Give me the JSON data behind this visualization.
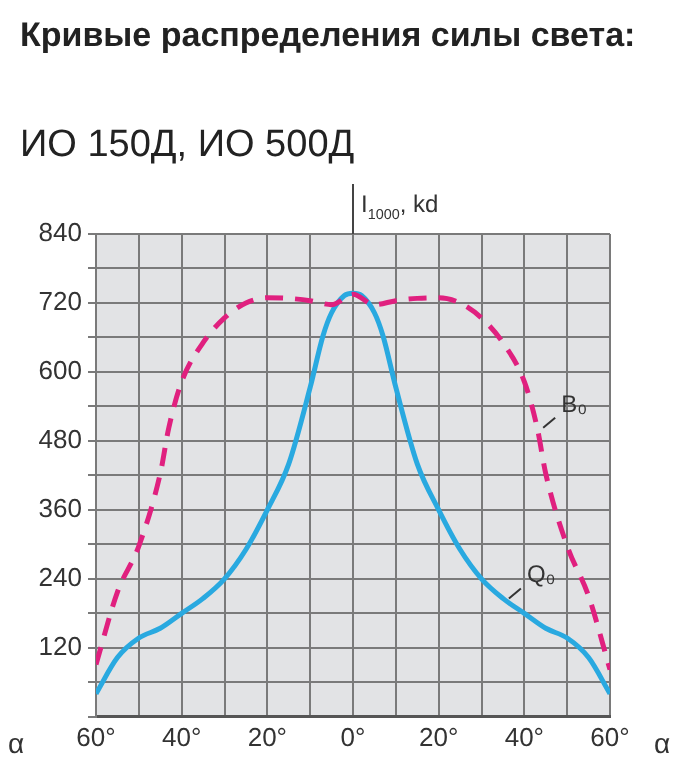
{
  "chart_data": {
    "type": "line",
    "title": "Кривые распределения силы света:",
    "subtitle": "ИО 150Д, ИО 500Д",
    "xlabel": "α",
    "ylabel": "I$_{1000}$, kd",
    "x": [
      -60,
      -55,
      -50,
      -45,
      -43,
      -40,
      -35,
      -30,
      -25,
      -20,
      -15,
      -10,
      -5,
      0,
      5,
      10,
      15,
      20,
      25,
      30,
      35,
      40,
      43,
      45,
      50,
      55,
      60
    ],
    "series": [
      {
        "name": "B₀",
        "color": "#e0207f",
        "line_style": "dashed",
        "values": [
          91,
          217,
          297,
          423,
          503,
          583,
          651,
          694,
          720,
          729,
          728,
          724,
          717,
          735,
          717,
          724,
          728,
          729,
          720,
          694,
          651,
          583,
          503,
          423,
          297,
          210,
          82
        ]
      },
      {
        "name": "Q₀",
        "color": "#29a9e0",
        "line_style": "solid",
        "x": [
          -60,
          -55,
          -50,
          -45,
          -40,
          -35,
          -30,
          -25,
          -20,
          -15,
          -10,
          -7,
          -5,
          -2,
          0,
          2,
          5,
          7,
          10,
          15,
          20,
          25,
          30,
          35,
          40,
          45,
          50,
          55,
          60
        ],
        "values": [
          40,
          103,
          137,
          154,
          180,
          206,
          240,
          291,
          360,
          440,
          573,
          663,
          703,
          733,
          737,
          733,
          703,
          663,
          573,
          440,
          360,
          291,
          240,
          206,
          180,
          154,
          137,
          103,
          40
        ]
      }
    ],
    "xlim": [
      -60,
      60
    ],
    "xticks": [
      {
        "value": -60,
        "label": "60°"
      },
      {
        "value": -50,
        "label": null
      },
      {
        "value": -40,
        "label": "40°"
      },
      {
        "value": -30,
        "label": null
      },
      {
        "value": -20,
        "label": "20°"
      },
      {
        "value": -10,
        "label": null
      },
      {
        "value": 0,
        "label": "0°"
      },
      {
        "value": 10,
        "label": null
      },
      {
        "value": 20,
        "label": "20°"
      },
      {
        "value": 30,
        "label": null
      },
      {
        "value": 40,
        "label": "40°"
      },
      {
        "value": 50,
        "label": null
      },
      {
        "value": 60,
        "label": "60°"
      }
    ],
    "ylim": [
      0,
      840
    ],
    "yticks": [
      {
        "value": 0,
        "label": null
      },
      {
        "value": 60,
        "label": null
      },
      120,
      {
        "value": 180,
        "label": null
      },
      240,
      {
        "value": 300,
        "label": null
      },
      360,
      {
        "value": 420,
        "label": null
      },
      480,
      {
        "value": 540,
        "label": null
      },
      600,
      {
        "value": 660,
        "label": null
      },
      720,
      {
        "value": 780,
        "label": null
      },
      840
    ],
    "grid": true,
    "legend": false,
    "marker": "none"
  }
}
